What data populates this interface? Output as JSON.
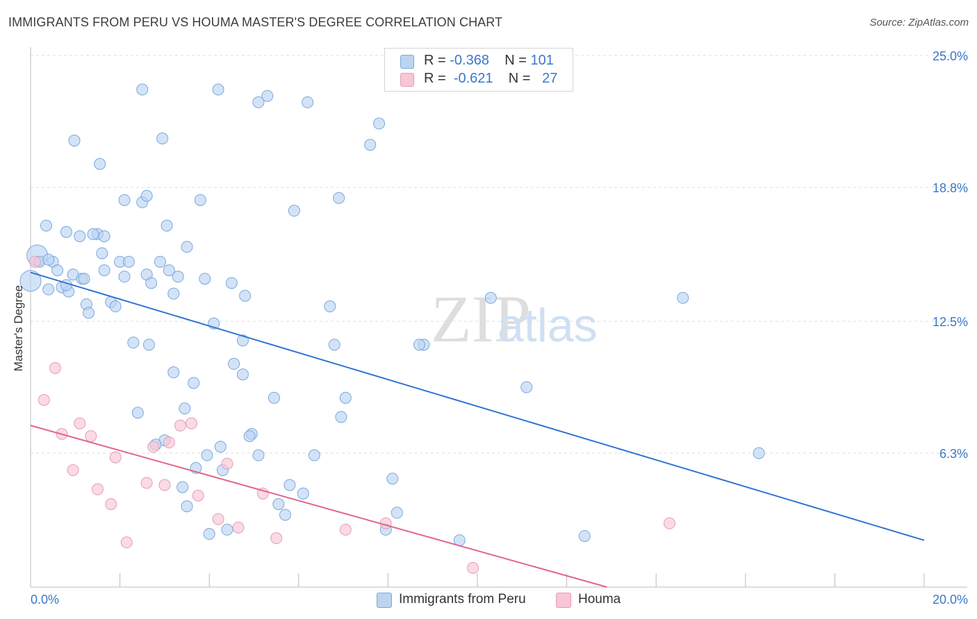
{
  "header": {
    "title": "IMMIGRANTS FROM PERU VS HOUMA MASTER'S DEGREE CORRELATION CHART",
    "source": "Source: ZipAtlas.com"
  },
  "watermark": {
    "zip": "ZIP",
    "atlas": "atlas"
  },
  "legend": {
    "rows": [
      {
        "r_label": "R =",
        "r_value": "-0.368",
        "n_label": "N =",
        "n_value": "101"
      },
      {
        "r_label": "R =",
        "r_value": "-0.621",
        "n_label": "N =",
        "n_value": "27"
      }
    ]
  },
  "bottom_legend": {
    "items": [
      "Immigrants from Peru",
      "Houma"
    ]
  },
  "colors": {
    "peru_fill": "#bcd4f2",
    "peru_stroke": "#7aa7dc",
    "peru_line": "#2f73d2",
    "houma_fill": "#f8c6d6",
    "houma_stroke": "#e79bb5",
    "houma_line": "#e0668f",
    "axis_label": "#3a78c8",
    "grid": "#dddddd"
  },
  "chart_data": {
    "type": "scatter",
    "title": "IMMIGRANTS FROM PERU VS HOUMA MASTER'S DEGREE CORRELATION CHART",
    "xlabel": "",
    "ylabel": "Master's Degree",
    "xlim": [
      0,
      20
    ],
    "ylim": [
      0,
      25.0
    ],
    "x_tick_labels": [
      "0.0%",
      "20.0%"
    ],
    "y_ticks": [
      {
        "value": 6.3,
        "label": "6.3%"
      },
      {
        "value": 12.5,
        "label": "12.5%"
      },
      {
        "value": 18.8,
        "label": "18.8%"
      },
      {
        "value": 25.0,
        "label": "25.0%"
      }
    ],
    "grid": true,
    "legend_position": "top-center",
    "series": [
      {
        "name": "Immigrants from Peru",
        "r": -0.368,
        "n": 101,
        "trend": {
          "x": [
            0.0,
            20.0
          ],
          "y": [
            14.8,
            2.2
          ]
        },
        "points": [
          {
            "x": 0.0,
            "y": 14.4,
            "big": true
          },
          {
            "x": 0.15,
            "y": 15.6,
            "big": true
          },
          {
            "x": 0.35,
            "y": 17.0
          },
          {
            "x": 0.2,
            "y": 15.3
          },
          {
            "x": 0.5,
            "y": 15.3
          },
          {
            "x": 0.4,
            "y": 15.4
          },
          {
            "x": 0.6,
            "y": 14.9
          },
          {
            "x": 0.4,
            "y": 14.0
          },
          {
            "x": 0.7,
            "y": 14.1
          },
          {
            "x": 0.85,
            "y": 13.9
          },
          {
            "x": 0.8,
            "y": 14.2
          },
          {
            "x": 0.95,
            "y": 14.7
          },
          {
            "x": 1.15,
            "y": 14.5
          },
          {
            "x": 0.8,
            "y": 16.7
          },
          {
            "x": 1.1,
            "y": 16.5
          },
          {
            "x": 1.5,
            "y": 16.6
          },
          {
            "x": 1.65,
            "y": 16.5
          },
          {
            "x": 1.4,
            "y": 16.6
          },
          {
            "x": 1.6,
            "y": 15.7
          },
          {
            "x": 1.65,
            "y": 14.9
          },
          {
            "x": 1.2,
            "y": 14.5
          },
          {
            "x": 1.25,
            "y": 13.3
          },
          {
            "x": 1.3,
            "y": 12.9
          },
          {
            "x": 1.8,
            "y": 13.4
          },
          {
            "x": 1.9,
            "y": 13.2
          },
          {
            "x": 2.0,
            "y": 15.3
          },
          {
            "x": 2.2,
            "y": 15.3
          },
          {
            "x": 2.1,
            "y": 14.6
          },
          {
            "x": 2.6,
            "y": 14.7
          },
          {
            "x": 2.7,
            "y": 14.3
          },
          {
            "x": 2.9,
            "y": 15.3
          },
          {
            "x": 3.1,
            "y": 14.9
          },
          {
            "x": 3.3,
            "y": 14.6
          },
          {
            "x": 3.2,
            "y": 13.8
          },
          {
            "x": 3.5,
            "y": 16.0
          },
          {
            "x": 3.05,
            "y": 17.0
          },
          {
            "x": 2.5,
            "y": 18.1
          },
          {
            "x": 2.6,
            "y": 18.4
          },
          {
            "x": 2.1,
            "y": 18.2
          },
          {
            "x": 3.8,
            "y": 18.2
          },
          {
            "x": 1.55,
            "y": 19.9
          },
          {
            "x": 0.98,
            "y": 21.0
          },
          {
            "x": 2.95,
            "y": 21.1
          },
          {
            "x": 2.5,
            "y": 23.4
          },
          {
            "x": 4.2,
            "y": 23.4
          },
          {
            "x": 5.3,
            "y": 23.1
          },
          {
            "x": 5.1,
            "y": 22.8
          },
          {
            "x": 6.2,
            "y": 22.8
          },
          {
            "x": 7.8,
            "y": 21.8
          },
          {
            "x": 7.6,
            "y": 20.8
          },
          {
            "x": 6.9,
            "y": 18.3
          },
          {
            "x": 5.9,
            "y": 17.7
          },
          {
            "x": 3.9,
            "y": 14.5
          },
          {
            "x": 4.5,
            "y": 14.3
          },
          {
            "x": 4.8,
            "y": 13.7
          },
          {
            "x": 4.1,
            "y": 12.4
          },
          {
            "x": 4.75,
            "y": 11.6
          },
          {
            "x": 6.7,
            "y": 13.2
          },
          {
            "x": 6.8,
            "y": 11.4
          },
          {
            "x": 8.8,
            "y": 11.4
          },
          {
            "x": 8.7,
            "y": 11.4
          },
          {
            "x": 10.3,
            "y": 13.6
          },
          {
            "x": 14.6,
            "y": 13.6
          },
          {
            "x": 2.3,
            "y": 11.5
          },
          {
            "x": 2.65,
            "y": 11.4
          },
          {
            "x": 3.2,
            "y": 10.1
          },
          {
            "x": 3.65,
            "y": 9.6
          },
          {
            "x": 4.55,
            "y": 10.5
          },
          {
            "x": 4.75,
            "y": 10.0
          },
          {
            "x": 5.45,
            "y": 8.9
          },
          {
            "x": 7.05,
            "y": 8.9
          },
          {
            "x": 6.95,
            "y": 8.0
          },
          {
            "x": 2.4,
            "y": 8.2
          },
          {
            "x": 3.45,
            "y": 8.4
          },
          {
            "x": 3.0,
            "y": 6.9
          },
          {
            "x": 2.8,
            "y": 6.7
          },
          {
            "x": 4.25,
            "y": 6.6
          },
          {
            "x": 4.95,
            "y": 7.2
          },
          {
            "x": 4.9,
            "y": 7.1
          },
          {
            "x": 3.95,
            "y": 6.2
          },
          {
            "x": 5.1,
            "y": 6.2
          },
          {
            "x": 6.35,
            "y": 6.2
          },
          {
            "x": 11.1,
            "y": 9.4
          },
          {
            "x": 16.3,
            "y": 6.3
          },
          {
            "x": 3.7,
            "y": 5.6
          },
          {
            "x": 4.3,
            "y": 5.5
          },
          {
            "x": 5.8,
            "y": 4.8
          },
          {
            "x": 6.1,
            "y": 4.4
          },
          {
            "x": 8.1,
            "y": 5.1
          },
          {
            "x": 3.4,
            "y": 4.7
          },
          {
            "x": 3.5,
            "y": 3.8
          },
          {
            "x": 5.55,
            "y": 3.9
          },
          {
            "x": 5.7,
            "y": 3.4
          },
          {
            "x": 8.2,
            "y": 3.5
          },
          {
            "x": 7.95,
            "y": 2.7
          },
          {
            "x": 4.0,
            "y": 2.5
          },
          {
            "x": 4.4,
            "y": 2.7
          },
          {
            "x": 9.6,
            "y": 2.2
          },
          {
            "x": 12.4,
            "y": 2.4
          }
        ]
      },
      {
        "name": "Houma",
        "r": -0.621,
        "n": 27,
        "trend": {
          "x": [
            0.0,
            12.9
          ],
          "y": [
            7.6,
            0.0
          ]
        },
        "points": [
          {
            "x": 0.1,
            "y": 15.3
          },
          {
            "x": 0.55,
            "y": 10.3
          },
          {
            "x": 0.3,
            "y": 8.8
          },
          {
            "x": 1.1,
            "y": 7.7
          },
          {
            "x": 0.7,
            "y": 7.2
          },
          {
            "x": 1.35,
            "y": 7.1
          },
          {
            "x": 1.9,
            "y": 6.1
          },
          {
            "x": 2.75,
            "y": 6.6
          },
          {
            "x": 3.1,
            "y": 6.8
          },
          {
            "x": 3.35,
            "y": 7.6
          },
          {
            "x": 3.6,
            "y": 7.7
          },
          {
            "x": 0.95,
            "y": 5.5
          },
          {
            "x": 1.5,
            "y": 4.6
          },
          {
            "x": 1.8,
            "y": 3.9
          },
          {
            "x": 2.6,
            "y": 4.9
          },
          {
            "x": 3.0,
            "y": 4.8
          },
          {
            "x": 3.75,
            "y": 4.3
          },
          {
            "x": 4.4,
            "y": 5.8
          },
          {
            "x": 5.2,
            "y": 4.4
          },
          {
            "x": 4.2,
            "y": 3.2
          },
          {
            "x": 4.65,
            "y": 2.8
          },
          {
            "x": 5.5,
            "y": 2.3
          },
          {
            "x": 7.05,
            "y": 2.7
          },
          {
            "x": 7.95,
            "y": 3.0
          },
          {
            "x": 2.15,
            "y": 2.1
          },
          {
            "x": 14.3,
            "y": 3.0
          },
          {
            "x": 9.9,
            "y": 0.9
          }
        ]
      }
    ]
  }
}
